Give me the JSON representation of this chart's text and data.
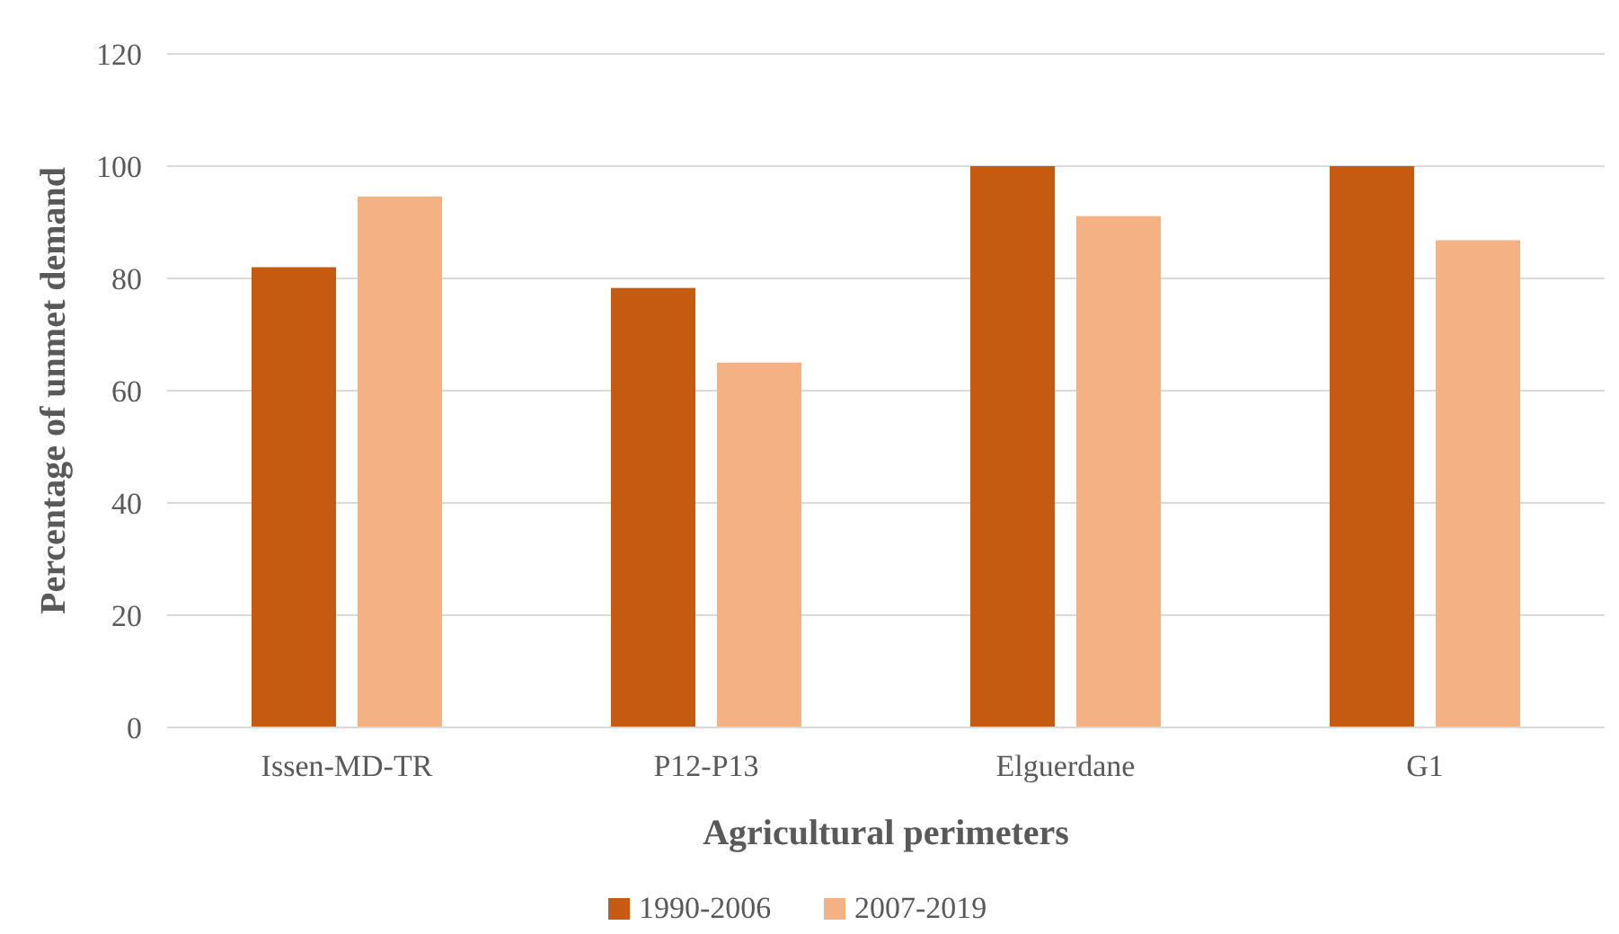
{
  "chart_data": {
    "type": "bar",
    "xlabel": "Agricultural perimeters",
    "ylabel": "Percentage of unmet demand",
    "categories": [
      "Issen-MD-TR",
      "P12-P13",
      "Elguerdane",
      "G1"
    ],
    "series": [
      {
        "name": "1990-2006",
        "color": "#c55a11",
        "values": [
          82,
          78.3,
          100,
          100
        ]
      },
      {
        "name": "2007-2019",
        "color": "#f4b183",
        "values": [
          94.6,
          65,
          91.1,
          86.8
        ]
      }
    ],
    "ylim": [
      0,
      120
    ],
    "yticks": [
      0,
      20,
      40,
      60,
      80,
      100,
      120
    ],
    "grid": "y",
    "legend": "bottom"
  }
}
